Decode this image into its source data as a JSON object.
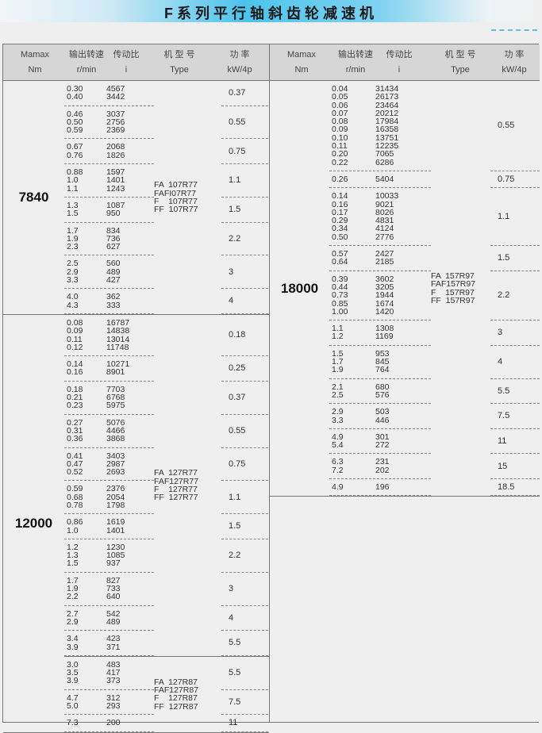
{
  "title": "F系列平行轴斜齿轮减速机",
  "header": {
    "mamax": "Mamax",
    "nm": "Nm",
    "speed": "输出转速",
    "speed_unit": "r/min",
    "ratio": "传动比",
    "ratio_unit": "i",
    "type": "机 型 号",
    "type_en": "Type",
    "power": "功  率",
    "power_unit": "kW/4p"
  },
  "left": [
    {
      "mamax": "7840",
      "subs": [
        {
          "type": [
            "FA  107R77",
            "FAFI07R77",
            "F    107R77",
            "FF  107R77"
          ],
          "groups": [
            {
              "speed": [
                "0.30",
                "0.40"
              ],
              "ratio": [
                "4567",
                "3442"
              ],
              "power": "0.37"
            },
            {
              "speed": [
                "0.46",
                "0.50",
                "0.59"
              ],
              "ratio": [
                "3037",
                "2756",
                "2369"
              ],
              "power": "0.55"
            },
            {
              "speed": [
                "0.67",
                "0.76"
              ],
              "ratio": [
                "2068",
                "1826"
              ],
              "power": "0.75"
            },
            {
              "speed": [
                "0.88",
                "1.0",
                "1.1"
              ],
              "ratio": [
                "1597",
                "1401",
                "1243"
              ],
              "power": "1.1"
            },
            {
              "speed": [
                "1.3",
                "1.5"
              ],
              "ratio": [
                "1087",
                "950"
              ],
              "power": "1.5"
            },
            {
              "speed": [
                "1.7",
                "1.9",
                "2.3"
              ],
              "ratio": [
                "834",
                "736",
                "627"
              ],
              "power": "2.2"
            },
            {
              "speed": [
                "2.5",
                "2.9",
                "3.3"
              ],
              "ratio": [
                "560",
                "489",
                "427"
              ],
              "power": "3"
            },
            {
              "speed": [
                "4.0",
                "4.3"
              ],
              "ratio": [
                "362",
                "333"
              ],
              "power": "4"
            }
          ]
        }
      ]
    },
    {
      "mamax": "12000",
      "subs": [
        {
          "type": [
            "FA  127R77",
            "FAF127R77",
            "F    127R77",
            "FF  127R77"
          ],
          "groups": [
            {
              "speed": [
                "0.08",
                "0.09",
                "0.11",
                "0.12"
              ],
              "ratio": [
                "16787",
                "14838",
                "13014",
                "11748"
              ],
              "power": "0.18"
            },
            {
              "speed": [
                "0.14",
                "0.16"
              ],
              "ratio": [
                "10271",
                "8901"
              ],
              "power": "0.25"
            },
            {
              "speed": [
                "0.18",
                "0.21",
                "0.23"
              ],
              "ratio": [
                "7703",
                "6768",
                "5975"
              ],
              "power": "0.37"
            },
            {
              "speed": [
                "0.27",
                "0.31",
                "0.36"
              ],
              "ratio": [
                "5076",
                "4466",
                "3868"
              ],
              "power": "0.55"
            },
            {
              "speed": [
                "0.41",
                "0.47",
                "0.52"
              ],
              "ratio": [
                "3403",
                "2987",
                "2693"
              ],
              "power": "0.75"
            },
            {
              "speed": [
                "0.59",
                "0.68",
                "0.78"
              ],
              "ratio": [
                "2376",
                "2054",
                "1798"
              ],
              "power": "1.1"
            },
            {
              "speed": [
                "0.86",
                "1.0"
              ],
              "ratio": [
                "1619",
                "1401"
              ],
              "power": "1.5"
            },
            {
              "speed": [
                "1.2",
                "1.3",
                "1.5"
              ],
              "ratio": [
                "1230",
                "1085",
                "937"
              ],
              "power": "2.2"
            },
            {
              "speed": [
                "1.7",
                "1.9",
                "2.2"
              ],
              "ratio": [
                "827",
                "733",
                "640"
              ],
              "power": "3"
            },
            {
              "speed": [
                "2.7",
                "2.9"
              ],
              "ratio": [
                "542",
                "489"
              ],
              "power": "4"
            },
            {
              "speed": [
                "3.4",
                "3.9"
              ],
              "ratio": [
                "423",
                "371"
              ],
              "power": "5.5"
            }
          ]
        },
        {
          "type": [
            "FA  127R87",
            "FAF127R87",
            "F    127R87",
            "FF  127R87"
          ],
          "groups": [
            {
              "speed": [
                "3.0",
                "3.5",
                "3.9"
              ],
              "ratio": [
                "483",
                "417",
                "373"
              ],
              "power": "5.5"
            },
            {
              "speed": [
                "4.7",
                "5.0"
              ],
              "ratio": [
                "312",
                "293"
              ],
              "power": "7.5"
            },
            {
              "speed": [
                "7.3"
              ],
              "ratio": [
                "200"
              ],
              "power": "11"
            }
          ]
        }
      ]
    }
  ],
  "right": [
    {
      "mamax": "18000",
      "subs": [
        {
          "type": [
            "FA  157R97",
            "FAF157R97",
            "F    157R97",
            "FF  157R97"
          ],
          "groups": [
            {
              "speed": [
                "0.04",
                "0.05",
                "0.06",
                "0.07",
                "0.08",
                "0.09",
                "0.10",
                "0.11",
                "0.20",
                "0.22"
              ],
              "ratio": [
                "31434",
                "26173",
                "23464",
                "20212",
                "17984",
                "16358",
                "13751",
                "12235",
                "7065",
                "6286"
              ],
              "power": "0.55"
            },
            {
              "speed": [
                "0.26"
              ],
              "ratio": [
                "5404"
              ],
              "power": "0.75"
            },
            {
              "speed": [
                "0.14",
                "0.16",
                "0.17",
                "0.29",
                "0.34",
                "0.50"
              ],
              "ratio": [
                "10033",
                "9021",
                "8026",
                "4831",
                "4124",
                "2776"
              ],
              "power": "1.1"
            },
            {
              "speed": [
                "0.57",
                "0.64"
              ],
              "ratio": [
                "2427",
                "2185"
              ],
              "power": "1.5"
            },
            {
              "speed": [
                "0.39",
                "0.44",
                "0.73",
                "0.85",
                "1.00"
              ],
              "ratio": [
                "3602",
                "3205",
                "1944",
                "1674",
                "1420"
              ],
              "power": "2.2"
            },
            {
              "speed": [
                "1.1",
                "1.2"
              ],
              "ratio": [
                "1308",
                "1169"
              ],
              "power": "3"
            },
            {
              "speed": [
                "1.5",
                "1.7",
                "1.9"
              ],
              "ratio": [
                "953",
                "845",
                "764"
              ],
              "power": "4"
            },
            {
              "speed": [
                "2.1",
                "2.5"
              ],
              "ratio": [
                "680",
                "576"
              ],
              "power": "5.5"
            },
            {
              "speed": [
                "2.9",
                "3.3"
              ],
              "ratio": [
                "503",
                "446"
              ],
              "power": "7.5"
            },
            {
              "speed": [
                "4.9",
                "5.4"
              ],
              "ratio": [
                "301",
                "272"
              ],
              "power": "11"
            },
            {
              "speed": [
                "6.3",
                "7.2"
              ],
              "ratio": [
                "231",
                "202"
              ],
              "power": "15"
            },
            {
              "speed": [
                "4.9"
              ],
              "ratio": [
                "196"
              ],
              "power": "18.5"
            }
          ]
        }
      ]
    }
  ]
}
